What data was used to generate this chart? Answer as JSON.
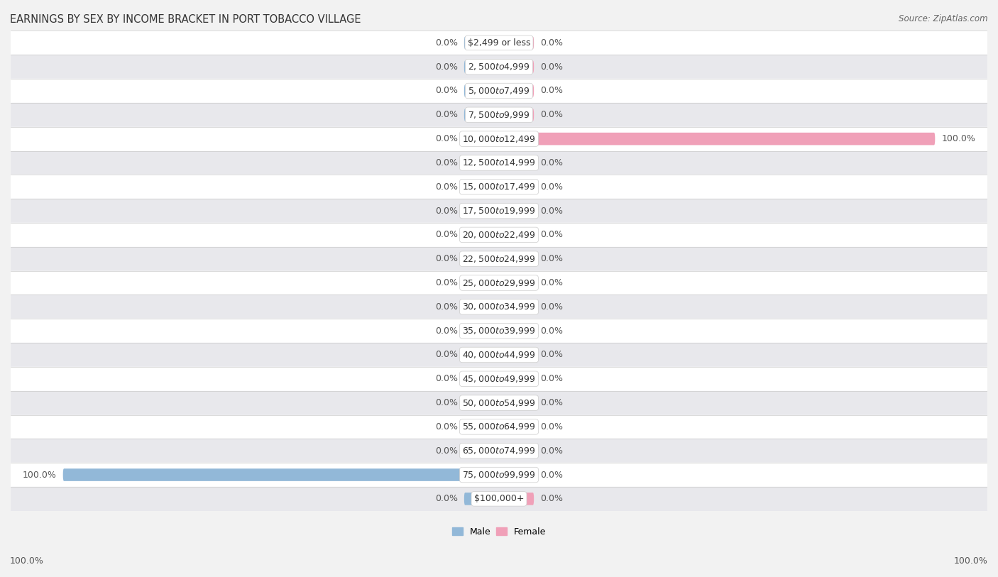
{
  "title": "EARNINGS BY SEX BY INCOME BRACKET IN PORT TOBACCO VILLAGE",
  "source": "Source: ZipAtlas.com",
  "categories": [
    "$2,499 or less",
    "$2,500 to $4,999",
    "$5,000 to $7,499",
    "$7,500 to $9,999",
    "$10,000 to $12,499",
    "$12,500 to $14,999",
    "$15,000 to $17,499",
    "$17,500 to $19,999",
    "$20,000 to $22,499",
    "$22,500 to $24,999",
    "$25,000 to $29,999",
    "$30,000 to $34,999",
    "$35,000 to $39,999",
    "$40,000 to $44,999",
    "$45,000 to $49,999",
    "$50,000 to $54,999",
    "$55,000 to $64,999",
    "$65,000 to $74,999",
    "$75,000 to $99,999",
    "$100,000+"
  ],
  "male_values": [
    0.0,
    0.0,
    0.0,
    0.0,
    0.0,
    0.0,
    0.0,
    0.0,
    0.0,
    0.0,
    0.0,
    0.0,
    0.0,
    0.0,
    0.0,
    0.0,
    0.0,
    0.0,
    100.0,
    0.0
  ],
  "female_values": [
    0.0,
    0.0,
    0.0,
    0.0,
    100.0,
    0.0,
    0.0,
    0.0,
    0.0,
    0.0,
    0.0,
    0.0,
    0.0,
    0.0,
    0.0,
    0.0,
    0.0,
    0.0,
    0.0,
    0.0
  ],
  "male_color": "#92b8d8",
  "female_color": "#f0a0b8",
  "male_label": "Male",
  "female_label": "Female",
  "bg_color": "#f2f2f2",
  "row_bg_odd": "#ffffff",
  "row_bg_even": "#e8e8ec",
  "xlim": 100.0,
  "stub_size": 8.0,
  "bar_height": 0.52,
  "title_fontsize": 10.5,
  "label_fontsize": 9,
  "cat_fontsize": 9,
  "source_fontsize": 8.5,
  "value_color": "#555555",
  "cat_label_color": "#333333",
  "white_label_color": "#ffffff"
}
